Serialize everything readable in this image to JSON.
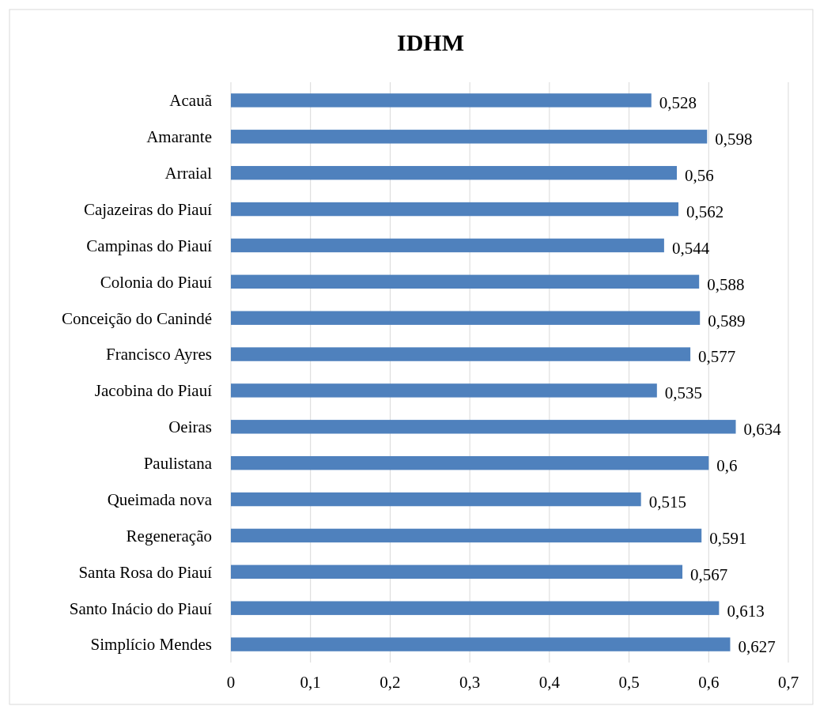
{
  "chart_data": {
    "type": "bar",
    "orientation": "horizontal",
    "title": "IDHM",
    "categories": [
      "Acauã",
      "Amarante",
      "Arraial",
      "Cajazeiras do Piauí",
      "Campinas do Piauí",
      "Colonia do Piauí",
      "Conceição do Canindé",
      "Francisco Ayres",
      "Jacobina do Piauí",
      "Oeiras",
      "Paulistana",
      "Queimada nova",
      "Regeneração",
      "Santa Rosa do Piauí",
      "Santo Inácio do Piauí",
      "Simplício Mendes"
    ],
    "values": [
      0.528,
      0.598,
      0.56,
      0.562,
      0.544,
      0.588,
      0.589,
      0.577,
      0.535,
      0.634,
      0.6,
      0.515,
      0.591,
      0.567,
      0.613,
      0.627
    ],
    "value_labels": [
      "0,528",
      "0,598",
      "0,56",
      "0,562",
      "0,544",
      "0,588",
      "0,589",
      "0,577",
      "0,535",
      "0,634",
      "0,6",
      "0,515",
      "0,591",
      "0,567",
      "0,613",
      "0,627"
    ],
    "color": "#4f81bd",
    "xlim": [
      0,
      0.7
    ],
    "xticks": [
      {
        "value": 0,
        "label": "0"
      },
      {
        "value": 0.1,
        "label": "0,1"
      },
      {
        "value": 0.2,
        "label": "0,2"
      },
      {
        "value": 0.3,
        "label": "0,3"
      },
      {
        "value": 0.4,
        "label": "0,4"
      },
      {
        "value": 0.5,
        "label": "0,5"
      },
      {
        "value": 0.6,
        "label": "0,6"
      },
      {
        "value": 0.7,
        "label": "0,7"
      }
    ],
    "grid": "x"
  }
}
